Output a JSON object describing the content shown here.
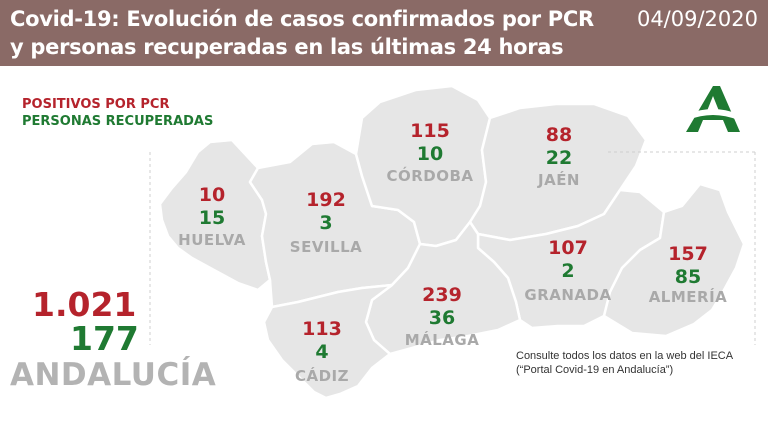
{
  "header": {
    "title": "Covid-19: Evolución de casos confirmados por PCR y personas recuperadas en las últimas 24 horas",
    "date": "04/09/2020"
  },
  "legend": {
    "pcr_label": "POSITIVOS POR PCR",
    "recovered_label": "PERSONAS RECUPERADAS"
  },
  "colors": {
    "header_bg": "#8a6a66",
    "pcr": "#b5232c",
    "recovered": "#1f7a32",
    "province_name": "#a9a9a9",
    "map_fill": "#e6e6e6",
    "logo_green": "#1f7a32"
  },
  "provinces": {
    "huelva": {
      "name": "HUELVA",
      "pcr": "10",
      "recovered": "15"
    },
    "sevilla": {
      "name": "SEVILLA",
      "pcr": "192",
      "recovered": "3"
    },
    "cordoba": {
      "name": "CÓRDOBA",
      "pcr": "115",
      "recovered": "10"
    },
    "jaen": {
      "name": "JAÉN",
      "pcr": "88",
      "recovered": "22"
    },
    "granada": {
      "name": "GRANADA",
      "pcr": "107",
      "recovered": "2"
    },
    "almeria": {
      "name": "ALMERÍA",
      "pcr": "157",
      "recovered": "85"
    },
    "malaga": {
      "name": "MÁLAGA",
      "pcr": "239",
      "recovered": "36"
    },
    "cadiz": {
      "name": "CÁDIZ",
      "pcr": "113",
      "recovered": "4"
    }
  },
  "total": {
    "name": "ANDALUCÍA",
    "pcr": "1.021",
    "recovered": "177"
  },
  "note": "Consulte todos los datos en la web del IECA (“Portal Covid-19 en Andalucía”)",
  "logo_icon": "junta-de-andalucia-logo-icon"
}
